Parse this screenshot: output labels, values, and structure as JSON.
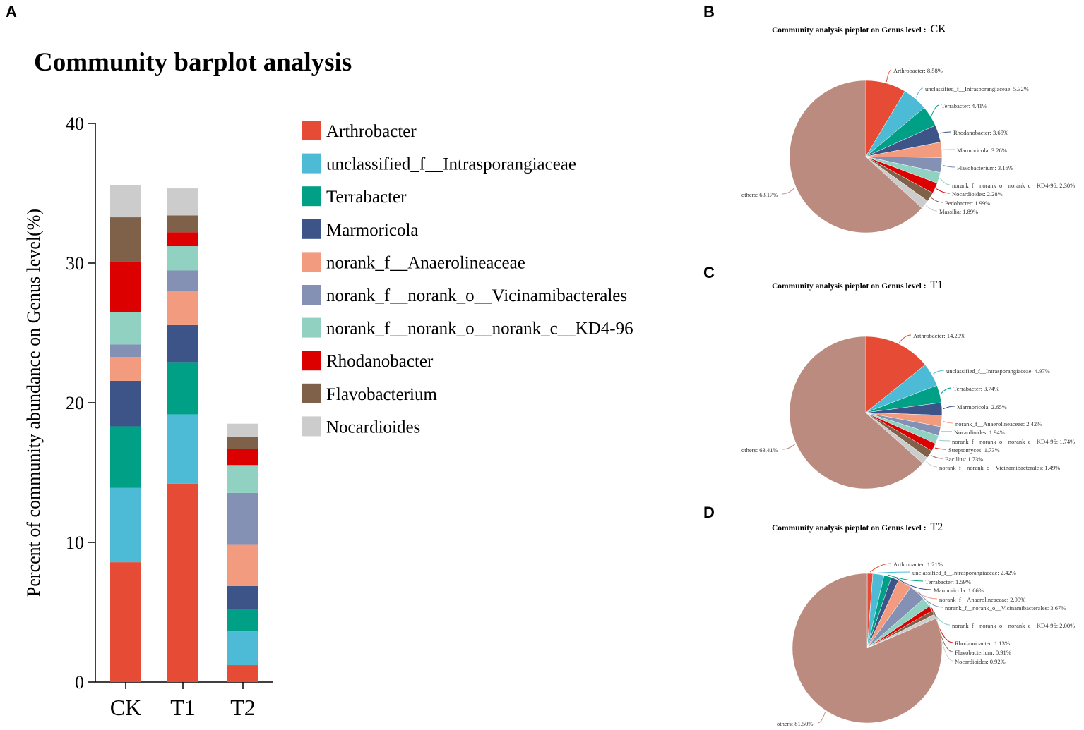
{
  "chart_data": [
    {
      "panel": "A",
      "type": "bar",
      "stacked": true,
      "title": "Community barplot analysis",
      "xlabel": "",
      "ylabel": "Percent of community abundance on Genus level(%)",
      "ylim": [
        0,
        40
      ],
      "yticks": [
        "0",
        "10",
        "20",
        "30",
        "40"
      ],
      "categories": [
        "CK",
        "T1",
        "T2"
      ],
      "legend_position": "right",
      "series": [
        {
          "name": "Arthrobacter",
          "color": "#e64b35",
          "values": [
            8.58,
            14.2,
            1.21
          ]
        },
        {
          "name": "unclassified_f__Intrasporangiaceae",
          "color": "#4dbbd5",
          "values": [
            5.32,
            4.97,
            2.42
          ]
        },
        {
          "name": "Terrabacter",
          "color": "#00a087",
          "values": [
            4.41,
            3.74,
            1.59
          ]
        },
        {
          "name": "Marmoricola",
          "color": "#3c5488",
          "values": [
            3.26,
            2.65,
            1.66
          ]
        },
        {
          "name": "norank_f__Anaerolineaceae",
          "color": "#f39b7f",
          "values": [
            1.7,
            2.42,
            2.99
          ]
        },
        {
          "name": "norank_f__norank_o__Vicinamibacterales",
          "color": "#8491b4",
          "values": [
            0.9,
            1.49,
            3.67
          ]
        },
        {
          "name": "norank_f__norank_o__norank_c__KD4-96",
          "color": "#91d1c2",
          "values": [
            2.3,
            1.74,
            2.0
          ]
        },
        {
          "name": "Rhodanobacter",
          "color": "#dc0000",
          "values": [
            3.65,
            1.0,
            1.13
          ]
        },
        {
          "name": "Flavobacterium",
          "color": "#7e6148",
          "values": [
            3.16,
            1.2,
            0.91
          ]
        },
        {
          "name": "Nocardioides",
          "color": "#cccccc",
          "values": [
            2.28,
            1.94,
            0.92
          ]
        }
      ]
    },
    {
      "panel": "B",
      "type": "pie",
      "title": "Community analysis pieplot on Genus level :",
      "sample": "CK",
      "slices": [
        {
          "label": "Arthrobacter",
          "value": 8.58,
          "text": "Arthrobacter: 8.58%"
        },
        {
          "label": "unclassified_f__Intrasporangiaceae",
          "value": 5.32,
          "text": "unclassified_f__Intrasporangiaceae: 5.32%"
        },
        {
          "label": "Terrabacter",
          "value": 4.41,
          "text": "Terrabacter: 4.41%"
        },
        {
          "label": "Rhodanobacter",
          "value": 3.65,
          "text": "Rhodanobacter: 3.65%"
        },
        {
          "label": "Marmoricola",
          "value": 3.26,
          "text": "Marmoricola: 3.26%"
        },
        {
          "label": "Flavobacterium",
          "value": 3.16,
          "text": "Flavobacterium: 3.16%"
        },
        {
          "label": "norank_f__norank_o__norank_c__KD4-96",
          "value": 2.3,
          "text": "norank_f__norank_o__norank_c__KD4-96: 2.30%"
        },
        {
          "label": "Nocardioides",
          "value": 2.28,
          "text": "Nocardioides: 2.28%"
        },
        {
          "label": "Pedobacter",
          "value": 1.99,
          "text": "Pedobacter: 1.99%"
        },
        {
          "label": "Massilia",
          "value": 1.89,
          "text": "Massilia: 1.89%"
        },
        {
          "label": "others",
          "value": 63.17,
          "text": "others: 63.17%"
        }
      ]
    },
    {
      "panel": "C",
      "type": "pie",
      "title": "Community analysis pieplot on Genus level :",
      "sample": "T1",
      "slices": [
        {
          "label": "Arthrobacter",
          "value": 14.2,
          "text": "Arthrobacter: 14.20%"
        },
        {
          "label": "unclassified_f__Intrasporangiaceae",
          "value": 4.97,
          "text": "unclassified_f__Intrasporangiaceae: 4.97%"
        },
        {
          "label": "Terrabacter",
          "value": 3.74,
          "text": "Terrabacter: 3.74%"
        },
        {
          "label": "Marmoricola",
          "value": 2.65,
          "text": "Marmoricola: 2.65%"
        },
        {
          "label": "norank_f__Anaerolineaceae",
          "value": 2.42,
          "text": "norank_f__Anaerolineaceae: 2.42%"
        },
        {
          "label": "Nocardioides",
          "value": 1.94,
          "text": "Nocardioides: 1.94%"
        },
        {
          "label": "norank_f__norank_o__norank_c__KD4-96",
          "value": 1.74,
          "text": "norank_f__norank_o__norank_c__KD4-96: 1.74%"
        },
        {
          "label": "Streptomyces",
          "value": 1.73,
          "text": "Streptomyces: 1.73%"
        },
        {
          "label": "Bacillus",
          "value": 1.73,
          "text": "Bacillus: 1.73%"
        },
        {
          "label": "norank_f__norank_o__Vicinamibacterales",
          "value": 1.49,
          "text": "norank_f__norank_o__Vicinamibacterales: 1.49%"
        },
        {
          "label": "others",
          "value": 63.41,
          "text": "others: 63.41%"
        }
      ]
    },
    {
      "panel": "D",
      "type": "pie",
      "title": "Community analysis pieplot on Genus level :",
      "sample": "T2",
      "slices": [
        {
          "label": "Arthrobacter",
          "value": 1.21,
          "text": "Arthrobacter: 1.21%"
        },
        {
          "label": "unclassified_f__Intrasporangiaceae",
          "value": 2.42,
          "text": "unclassified_f__Intrasporangiaceae: 2.42%"
        },
        {
          "label": "Terrabacter",
          "value": 1.59,
          "text": "Terrabacter: 1.59%"
        },
        {
          "label": "Marmoricola",
          "value": 1.66,
          "text": "Marmoricola: 1.66%"
        },
        {
          "label": "norank_f__Anaerolineaceae",
          "value": 2.99,
          "text": "norank_f__Anaerolineaceae: 2.99%"
        },
        {
          "label": "norank_f__norank_o__Vicinamibacterales",
          "value": 3.67,
          "text": "norank_f__norank_o__Vicinamibacterales: 3.67%"
        },
        {
          "label": "norank_f__norank_o__norank_c__KD4-96",
          "value": 2.0,
          "text": "norank_f__norank_o__norank_c__KD4-96: 2.00%"
        },
        {
          "label": "Rhodanobacter",
          "value": 1.13,
          "text": "Rhodanobacter: 1.13%"
        },
        {
          "label": "Flavobacterium",
          "value": 0.91,
          "text": "Flavobacterium: 0.91%"
        },
        {
          "label": "Nocardioides",
          "value": 0.92,
          "text": "Nocardioides: 0.92%"
        },
        {
          "label": "others",
          "value": 81.5,
          "text": "others: 81.50%"
        }
      ]
    }
  ],
  "pie_colors": [
    "#e64b35",
    "#4dbbd5",
    "#00a087",
    "#3c5488",
    "#f39b7f",
    "#8491b4",
    "#91d1c2",
    "#dc0000",
    "#7e6148",
    "#cccccc",
    "#bc8b80"
  ]
}
